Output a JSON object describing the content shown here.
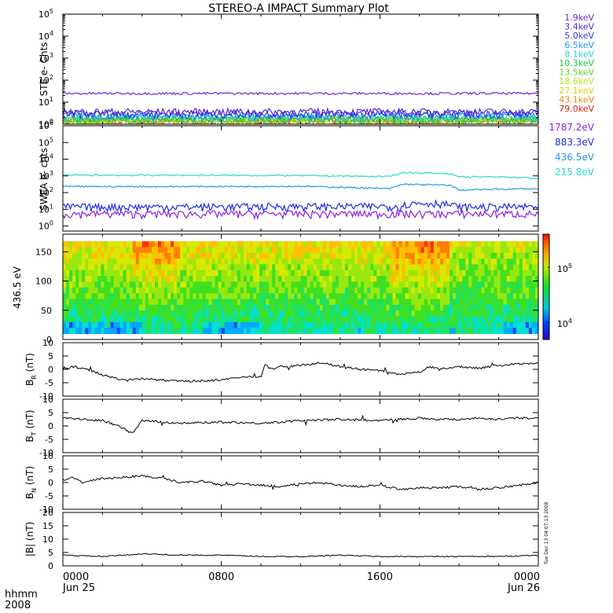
{
  "title": "STEREO-A IMPACT Summary Plot",
  "footer": {
    "left_top": "hhmm",
    "left_bottom": "2008"
  },
  "timestamp": "Tue Dec 13 04:07:13 2008",
  "colors": {
    "ste": [
      "#7b1fd6",
      "#5a1fd0",
      "#2a3bf0",
      "#2196e8",
      "#22d3d3",
      "#20c840",
      "#58d41e",
      "#b8e020",
      "#e0d018",
      "#e08a10",
      "#e02010"
    ],
    "swea": [
      "#8a22e0",
      "#1a2ae8",
      "#2898e6",
      "#2ad8c8"
    ]
  },
  "chart_data": [
    {
      "id": "ste",
      "type": "line",
      "ylabel": "STE e- Cnts",
      "yscale": "log",
      "ylim": [
        1,
        100000
      ],
      "ytick_labels": [
        "10^0",
        "10^1",
        "10^2",
        "10^3",
        "10^4",
        "10^5"
      ],
      "series": [
        {
          "name": "1.9keV",
          "level": 25
        },
        {
          "name": "3.4keV",
          "level": 3.2
        },
        {
          "name": "5.0keV",
          "level": 2.6
        },
        {
          "name": "6.5keV",
          "level": 2.1
        },
        {
          "name": "8.1keV",
          "level": 1.7
        },
        {
          "name": "10.3keV",
          "level": 1.5
        },
        {
          "name": "13.5keV",
          "level": 1.4
        },
        {
          "name": "18.6keV",
          "level": 1.3
        },
        {
          "name": "27.1keV",
          "level": 1.25
        },
        {
          "name": "43.1keV",
          "level": 1.2
        },
        {
          "name": "79.0keV",
          "level": 1.15
        }
      ]
    },
    {
      "id": "swea",
      "type": "line",
      "ylabel": "SWEA e- cnts",
      "yscale": "log",
      "ylim": [
        0.5,
        1000000
      ],
      "ytick_labels": [
        "10^0",
        "10^1",
        "10^2",
        "10^3",
        "10^4",
        "10^5",
        "10^6"
      ],
      "series": [
        {
          "name": "1787.2eV",
          "t": [
            0,
            6,
            12,
            17,
            18,
            19,
            20,
            22,
            24
          ],
          "values": [
            5,
            5,
            5,
            5,
            5,
            5,
            5,
            5,
            5
          ]
        },
        {
          "name": "883.3eV",
          "t": [
            0,
            6,
            12,
            17,
            17.5,
            19,
            20,
            22,
            24
          ],
          "values": [
            13,
            13,
            14,
            14,
            20,
            22,
            13,
            13,
            13
          ]
        },
        {
          "name": "436.5eV",
          "t": [
            0,
            6,
            12,
            16.5,
            17.2,
            18,
            19.5,
            20,
            22,
            24
          ],
          "values": [
            230,
            230,
            240,
            170,
            320,
            300,
            280,
            140,
            160,
            170
          ]
        },
        {
          "name": "215.8eV",
          "t": [
            0,
            6,
            12,
            16.5,
            17.2,
            18,
            19.5,
            20,
            22,
            24
          ],
          "values": [
            1100,
            1100,
            1050,
            900,
            1600,
            1500,
            1400,
            850,
            900,
            700
          ]
        }
      ]
    },
    {
      "id": "spectrogram",
      "type": "heatmap",
      "ylabel": "436.5 eV",
      "ylim": [
        0,
        180
      ],
      "yticks": [
        0,
        50,
        100,
        150
      ],
      "colorbar": {
        "labels": [
          "10^5",
          "10^4"
        ]
      }
    },
    {
      "id": "br",
      "type": "line",
      "ylabel": "B_R (nT)",
      "ylim": [
        -10,
        10
      ],
      "yticks": [
        -10,
        -5,
        0,
        5,
        10
      ],
      "t": [
        0,
        0.5,
        1,
        2,
        3,
        4,
        6,
        8,
        9,
        10,
        10.2,
        10.5,
        11,
        12,
        13,
        14,
        15,
        16,
        17,
        18,
        18.5,
        19,
        20,
        21,
        22,
        23,
        24
      ],
      "values": [
        0,
        1,
        0.5,
        -2,
        -4,
        -3.5,
        -4.5,
        -4,
        -3,
        -2.5,
        2,
        0,
        1,
        1.5,
        2.5,
        1,
        0,
        -0.5,
        -2,
        -1,
        1,
        0,
        1,
        0.5,
        1.5,
        2,
        2.5
      ]
    },
    {
      "id": "bt",
      "type": "line",
      "ylabel": "B_T (nT)",
      "ylim": [
        -10,
        10
      ],
      "yticks": [
        -10,
        -5,
        0,
        5,
        10
      ],
      "t": [
        0,
        1,
        2,
        3,
        3.5,
        4,
        5,
        6,
        8,
        10,
        12,
        14,
        16,
        18,
        19,
        20,
        21,
        22,
        23,
        24
      ],
      "values": [
        3,
        2.5,
        2,
        -0.5,
        -3,
        2,
        1.5,
        1,
        1.5,
        1,
        2,
        2.5,
        2,
        3,
        2.5,
        2.5,
        3,
        2.5,
        3,
        3
      ]
    },
    {
      "id": "bn",
      "type": "line",
      "ylabel": "B_N (nT)",
      "ylim": [
        -10,
        10
      ],
      "yticks": [
        -10,
        -5,
        0,
        5,
        10
      ],
      "t": [
        0,
        0.5,
        1,
        2,
        3,
        4,
        5,
        6,
        7,
        8,
        9,
        10,
        11,
        12,
        13,
        14,
        15,
        16,
        17,
        18,
        19,
        20,
        21,
        22,
        23,
        24
      ],
      "values": [
        1,
        2,
        0,
        1.5,
        2,
        2.5,
        1.5,
        0,
        0.5,
        -1,
        -0.5,
        -1,
        -1.5,
        -0.5,
        0,
        -1,
        -1.5,
        -1,
        -2.5,
        -2,
        -2,
        -1.5,
        -2.5,
        -2,
        -1,
        0
      ]
    },
    {
      "id": "bmag",
      "type": "line",
      "ylabel": "|B| (nT)",
      "ylim": [
        0,
        20
      ],
      "yticks": [
        0,
        5,
        10,
        15,
        20
      ],
      "t": [
        0,
        2,
        4,
        6,
        8,
        10,
        12,
        14,
        16,
        18,
        20,
        22,
        24
      ],
      "values": [
        4,
        3.5,
        4.5,
        4,
        4,
        3.5,
        3.5,
        4,
        3.5,
        3.5,
        3.5,
        3.5,
        4
      ]
    }
  ],
  "x_axis": {
    "ticks": [
      {
        "t": 0,
        "time": "0000",
        "date": "Jun 25"
      },
      {
        "t": 8,
        "time": "0800",
        "date": ""
      },
      {
        "t": 16,
        "time": "1600",
        "date": ""
      },
      {
        "t": 24,
        "time": "0000",
        "date": "Jun 26"
      }
    ]
  }
}
